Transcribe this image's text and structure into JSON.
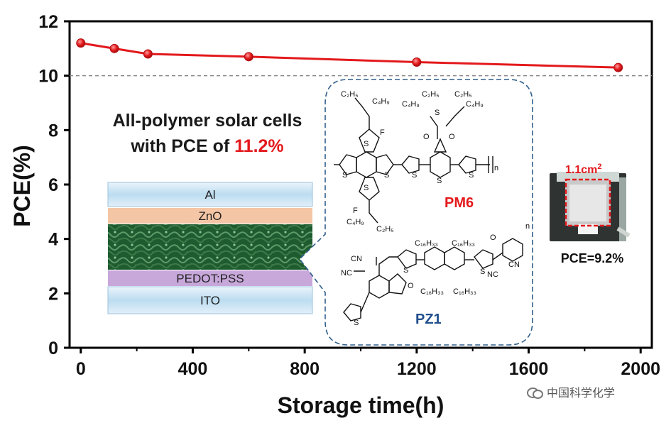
{
  "chart_data": {
    "type": "line",
    "title": "",
    "xlabel": "Storage time(h)",
    "ylabel": "PCE(%)",
    "xlim": [
      -40,
      2040
    ],
    "ylim": [
      0,
      12
    ],
    "x_ticks": [
      0,
      400,
      800,
      1200,
      1600,
      2000
    ],
    "y_ticks": [
      0,
      2,
      4,
      6,
      8,
      10,
      12
    ],
    "reference_line": 10,
    "series": [
      {
        "name": "PCE",
        "color": "#e3191c",
        "x": [
          0,
          120,
          240,
          600,
          1200,
          1920
        ],
        "y": [
          11.2,
          11.0,
          10.8,
          10.7,
          10.5,
          10.3
        ]
      }
    ]
  },
  "headline": {
    "line1": "All-polymer solar cells",
    "line2_prefix": "with PCE of ",
    "line2_value": "11.2%"
  },
  "device_stack": {
    "layers": [
      "Al",
      "ZnO",
      "",
      "PEDOT:PSS",
      "ITO"
    ]
  },
  "molecules": {
    "donor": "PM6",
    "acceptor": "PZ1",
    "n": "n"
  },
  "photo": {
    "area_label": "1.1cm",
    "area_exp": "2",
    "pce_label": "PCE=9.2%"
  },
  "watermark": "中国科学化学",
  "colors": {
    "series": "#e3191c",
    "axis": "#000000",
    "donor": "#e3191c",
    "acceptor": "#1f4e8c"
  }
}
